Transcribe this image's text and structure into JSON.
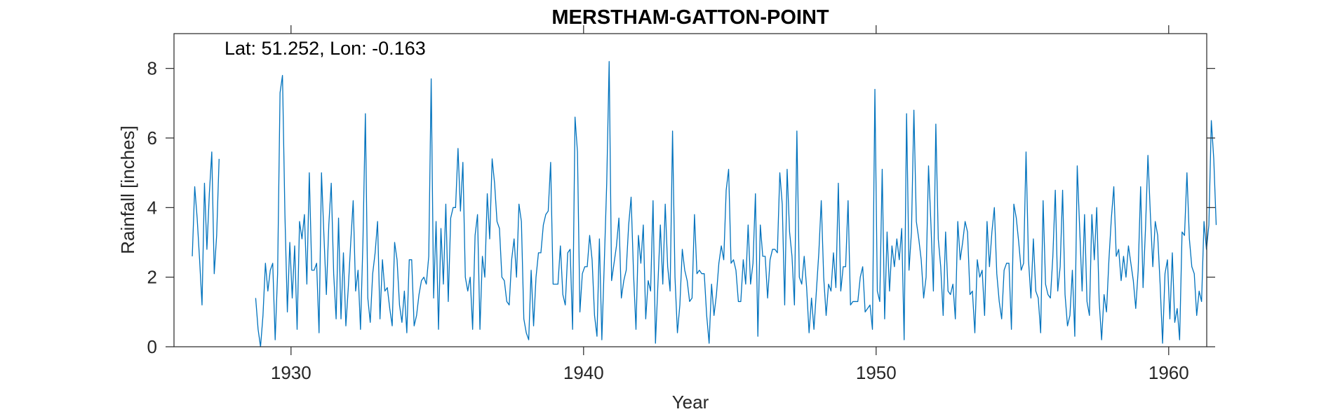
{
  "chart_data": {
    "type": "line",
    "title": "MERSTHAM-GATTON-POINT",
    "xlabel": "Year",
    "ylabel": "Rainfall [inches]",
    "annotation": "Lat: 51.252, Lon: -0.163",
    "xlim": [
      1926,
      1961.3
    ],
    "ylim": [
      0,
      9
    ],
    "xticks": [
      1930,
      1940,
      1950,
      1960
    ],
    "yticks": [
      0,
      2,
      4,
      6,
      8
    ],
    "grid": false,
    "box": true,
    "line_color": "#0072BD",
    "series": [
      {
        "start": 1926.625,
        "step": 0.08333,
        "values": [
          2.6,
          4.6,
          3.7,
          2.5,
          1.2,
          4.7,
          2.8,
          4.4,
          5.6,
          2.1,
          3.2,
          5.4,
          null,
          null,
          null,
          null,
          null,
          null,
          null,
          null,
          null,
          null,
          null,
          null,
          null,
          null,
          1.4,
          0.5,
          0.0,
          0.9,
          2.4,
          1.6,
          2.2,
          2.4,
          0.2,
          2.1,
          7.3,
          7.8,
          3.8,
          1.0,
          3.0,
          1.4,
          2.9,
          0.5,
          3.6,
          3.1,
          3.8,
          1.8,
          5.0,
          2.2,
          2.2,
          2.4,
          0.4,
          5.0,
          3.2,
          1.5,
          3.5,
          4.7,
          2.1,
          0.8,
          3.7,
          0.8,
          2.7,
          0.6,
          1.7,
          3.0,
          4.2,
          1.6,
          2.2,
          0.5,
          3.0,
          6.7,
          1.4,
          0.7,
          2.1,
          2.7,
          3.6,
          0.8,
          2.5,
          1.6,
          1.7,
          1.1,
          0.6,
          3.0,
          2.5,
          1.2,
          0.7,
          1.6,
          0.4,
          2.5,
          2.5,
          0.6,
          0.9,
          1.5,
          1.9,
          2.0,
          1.8,
          2.6,
          7.7,
          1.4,
          3.6,
          0.5,
          3.4,
          1.8,
          4.1,
          1.3,
          3.7,
          4.0,
          4.0,
          5.7,
          3.9,
          5.3,
          2.0,
          1.6,
          2.0,
          0.5,
          3.2,
          3.8,
          0.5,
          2.6,
          2.0,
          4.4,
          3.1,
          5.4,
          4.7,
          3.6,
          3.4,
          2.0,
          1.9,
          1.3,
          1.2,
          2.5,
          3.1,
          2.0,
          4.1,
          3.6,
          0.8,
          0.4,
          0.2,
          2.2,
          0.6,
          2.0,
          2.7,
          2.7,
          3.5,
          3.8,
          3.9,
          5.3,
          1.8,
          1.8,
          1.8,
          2.9,
          1.5,
          1.2,
          2.7,
          2.8,
          0.5,
          6.6,
          5.6,
          1.0,
          2.1,
          2.3,
          2.3,
          3.2,
          2.5,
          0.9,
          0.3,
          3.1,
          0.2,
          2.4,
          4.7,
          8.2,
          1.9,
          2.4,
          2.9,
          3.7,
          1.4,
          1.9,
          2.2,
          3.5,
          4.3,
          2.1,
          0.5,
          3.2,
          2.4,
          3.5,
          0.8,
          1.9,
          1.6,
          4.2,
          0.1,
          1.8,
          3.5,
          1.8,
          4.1,
          2.3,
          1.6,
          6.2,
          2.0,
          0.4,
          1.2,
          2.8,
          2.2,
          1.9,
          1.3,
          1.4,
          3.8,
          2.1,
          2.2,
          2.1,
          2.1,
          0.9,
          0.1,
          1.8,
          0.9,
          1.5,
          2.4,
          2.9,
          2.5,
          4.5,
          5.1,
          2.4,
          2.5,
          2.2,
          1.3,
          1.3,
          2.5,
          1.8,
          3.5,
          1.8,
          2.4,
          4.4,
          0.3,
          3.5,
          2.6,
          2.6,
          1.4,
          2.5,
          2.8,
          2.8,
          2.7,
          5.0,
          4.1,
          1.2,
          5.1,
          3.3,
          2.6,
          1.2,
          6.2,
          2.0,
          1.8,
          2.6,
          1.7,
          0.4,
          1.4,
          0.5,
          1.6,
          2.7,
          4.2,
          2.0,
          0.9,
          1.8,
          1.6,
          2.7,
          1.7,
          4.7,
          1.6,
          2.3,
          2.3,
          4.2,
          1.2,
          1.3,
          1.3,
          1.3,
          2.0,
          2.3,
          1.0,
          1.1,
          1.2,
          0.5,
          7.4,
          1.6,
          1.3,
          5.1,
          0.8,
          3.3,
          1.6,
          2.9,
          2.3,
          3.1,
          2.5,
          3.4,
          0.2,
          6.7,
          2.2,
          3.3,
          6.8,
          3.6,
          3.1,
          2.5,
          1.4,
          2.0,
          5.2,
          3.5,
          1.6,
          6.4,
          3.1,
          2.3,
          0.9,
          3.3,
          1.6,
          1.5,
          1.8,
          0.8,
          3.6,
          2.5,
          3.0,
          3.6,
          3.3,
          1.5,
          1.6,
          0.4,
          2.5,
          2.0,
          2.2,
          0.9,
          3.6,
          2.3,
          3.3,
          4.0,
          2.1,
          1.3,
          0.8,
          2.2,
          2.4,
          2.4,
          0.5,
          4.1,
          3.7,
          3.0,
          2.2,
          2.4,
          5.6,
          2.5,
          1.4,
          3.1,
          1.6,
          1.4,
          0.4,
          4.2,
          1.8,
          1.5,
          1.4,
          2.6,
          4.5,
          1.6,
          2.3,
          4.5,
          1.5,
          0.6,
          0.9,
          2.2,
          0.3,
          5.2,
          3.4,
          1.6,
          3.8,
          1.3,
          0.9,
          3.8,
          2.5,
          4.0,
          1.3,
          0.2,
          1.5,
          1.0,
          2.5,
          3.7,
          4.6,
          2.6,
          2.8,
          1.9,
          2.6,
          2.0,
          2.9,
          2.4,
          1.9,
          1.1,
          2.2,
          4.6,
          1.7,
          3.4,
          5.5,
          3.8,
          2.3,
          3.6,
          3.2,
          1.8,
          0.1,
          2.1,
          2.5,
          0.8,
          2.7,
          0.7,
          1.1,
          0.2,
          3.3,
          3.2,
          5.0,
          3.1,
          2.3,
          2.1,
          0.9,
          1.6,
          1.3,
          3.6,
          2.8,
          3.5,
          6.5,
          5.4,
          3.5
        ]
      }
    ]
  }
}
